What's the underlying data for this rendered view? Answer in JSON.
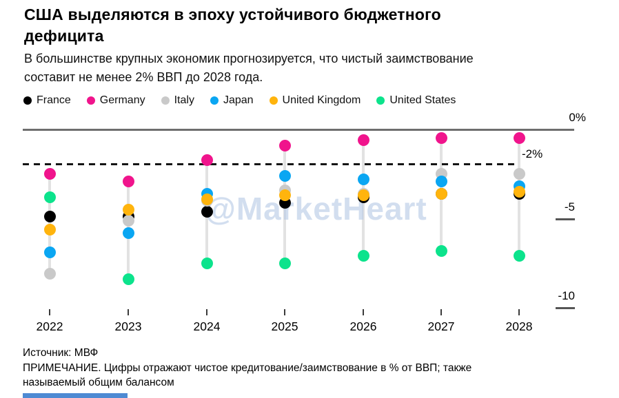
{
  "header": {
    "title_lines": [
      "США выделяются в эпоху устойчивого бюджетного",
      "дефицита"
    ],
    "subtitle_lines": [
      "В большинстве крупных экономик прогнозируется, что чистый заимствование",
      "составит не менее 2% ВВП до 2028 года."
    ]
  },
  "legend": {
    "items": [
      {
        "label": "France",
        "color": "#000000"
      },
      {
        "label": "Germany",
        "color": "#F0148C"
      },
      {
        "label": "Italy",
        "color": "#C9C9C9"
      },
      {
        "label": "Japan",
        "color": "#0AA6F2"
      },
      {
        "label": "United Kingdom",
        "color": "#FFB40D"
      },
      {
        "label": "United States",
        "color": "#0CE38C"
      }
    ]
  },
  "watermark": "@MarketHeart",
  "chart_data": {
    "type": "scatter",
    "x": [
      "2022",
      "2023",
      "2024",
      "2025",
      "2026",
      "2027",
      "2028"
    ],
    "series": [
      {
        "name": "France",
        "color": "#000000",
        "values": [
          -4.9,
          -4.9,
          -4.6,
          -4.1,
          -3.8,
          -3.6,
          -3.6
        ]
      },
      {
        "name": "Germany",
        "color": "#F0148C",
        "values": [
          -2.5,
          -2.9,
          -1.7,
          -0.9,
          -0.6,
          -0.5,
          -0.5
        ]
      },
      {
        "name": "Italy",
        "color": "#C9C9C9",
        "values": [
          -8.1,
          -5.1,
          -4.0,
          -3.4,
          -3.6,
          -2.5,
          -2.5
        ]
      },
      {
        "name": "Japan",
        "color": "#0AA6F2",
        "values": [
          -6.9,
          -5.8,
          -3.6,
          -2.6,
          -2.8,
          -2.9,
          -3.2
        ]
      },
      {
        "name": "United Kingdom",
        "color": "#FFB40D",
        "values": [
          -5.6,
          -4.5,
          -3.9,
          -3.7,
          -3.7,
          -3.6,
          -3.5
        ]
      },
      {
        "name": "United States",
        "color": "#0CE38C",
        "values": [
          -3.8,
          -8.4,
          -7.5,
          -7.5,
          -7.1,
          -6.8,
          -7.1
        ]
      }
    ],
    "ylim": [
      -10.5,
      0.5
    ],
    "baseline_value": 0,
    "dashed_reference_value": -2,
    "ytick_labels": [
      "0%",
      "-2%",
      "-5",
      "-10"
    ],
    "ytick_values": [
      0,
      -2,
      -5,
      -10
    ],
    "xlabel": "",
    "ylabel": "",
    "grid": false,
    "legend_position": "top",
    "title": "США выделяются в эпоху устойчивого бюджетного дефицита"
  },
  "footer": {
    "source": "Источник: МВФ",
    "note_lines": [
      "ПРИМЕЧАНИЕ. Цифры отражают чистое кредитование/заимствование в % от ВВП; также",
      "называемый общим балансом"
    ]
  }
}
